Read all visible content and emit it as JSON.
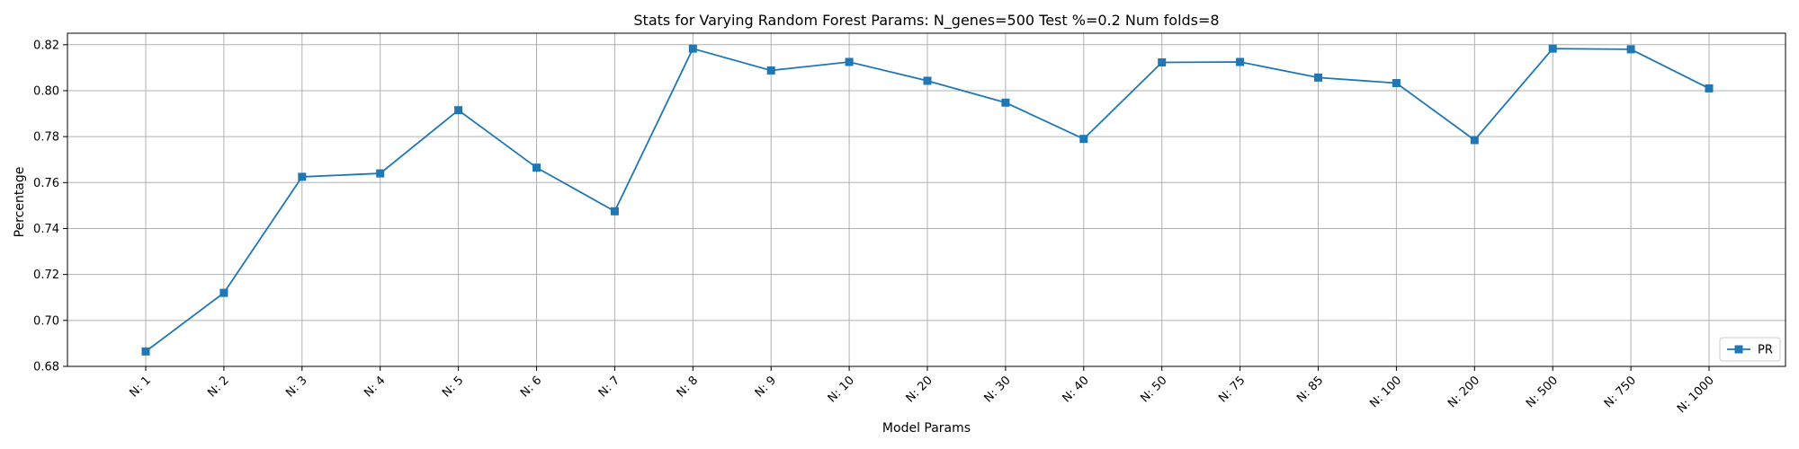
{
  "chart_data": {
    "type": "line",
    "title": "Stats for Varying Random Forest Params: N_genes=500 Test %=0.2 Num folds=8",
    "xlabel": "Model Params",
    "ylabel": "Percentage",
    "categories": [
      "N: 1",
      "N: 2",
      "N: 3",
      "N: 4",
      "N: 5",
      "N: 6",
      "N: 7",
      "N: 8",
      "N: 9",
      "N: 10",
      "N: 20",
      "N: 30",
      "N: 40",
      "N: 50",
      "N: 75",
      "N: 85",
      "N: 100",
      "N: 200",
      "N: 500",
      "N: 750",
      "N: 1000"
    ],
    "series": [
      {
        "name": "PR",
        "color": "#1f77b4",
        "marker": "square",
        "values": [
          0.6865,
          0.712,
          0.7625,
          0.764,
          0.7915,
          0.7665,
          0.7475,
          0.8183,
          0.8088,
          0.8125,
          0.8043,
          0.7948,
          0.779,
          0.8123,
          0.8125,
          0.8057,
          0.8033,
          0.7785,
          0.8183,
          0.818,
          0.801
        ]
      }
    ],
    "ylim": [
      0.68,
      0.825
    ],
    "yticks": [
      0.68,
      0.7,
      0.72,
      0.74,
      0.76,
      0.78,
      0.8,
      0.82
    ],
    "ytick_labels": [
      "0.68",
      "0.70",
      "0.72",
      "0.74",
      "0.76",
      "0.78",
      "0.80",
      "0.82"
    ],
    "grid": true,
    "legend_position": "lower-right"
  }
}
